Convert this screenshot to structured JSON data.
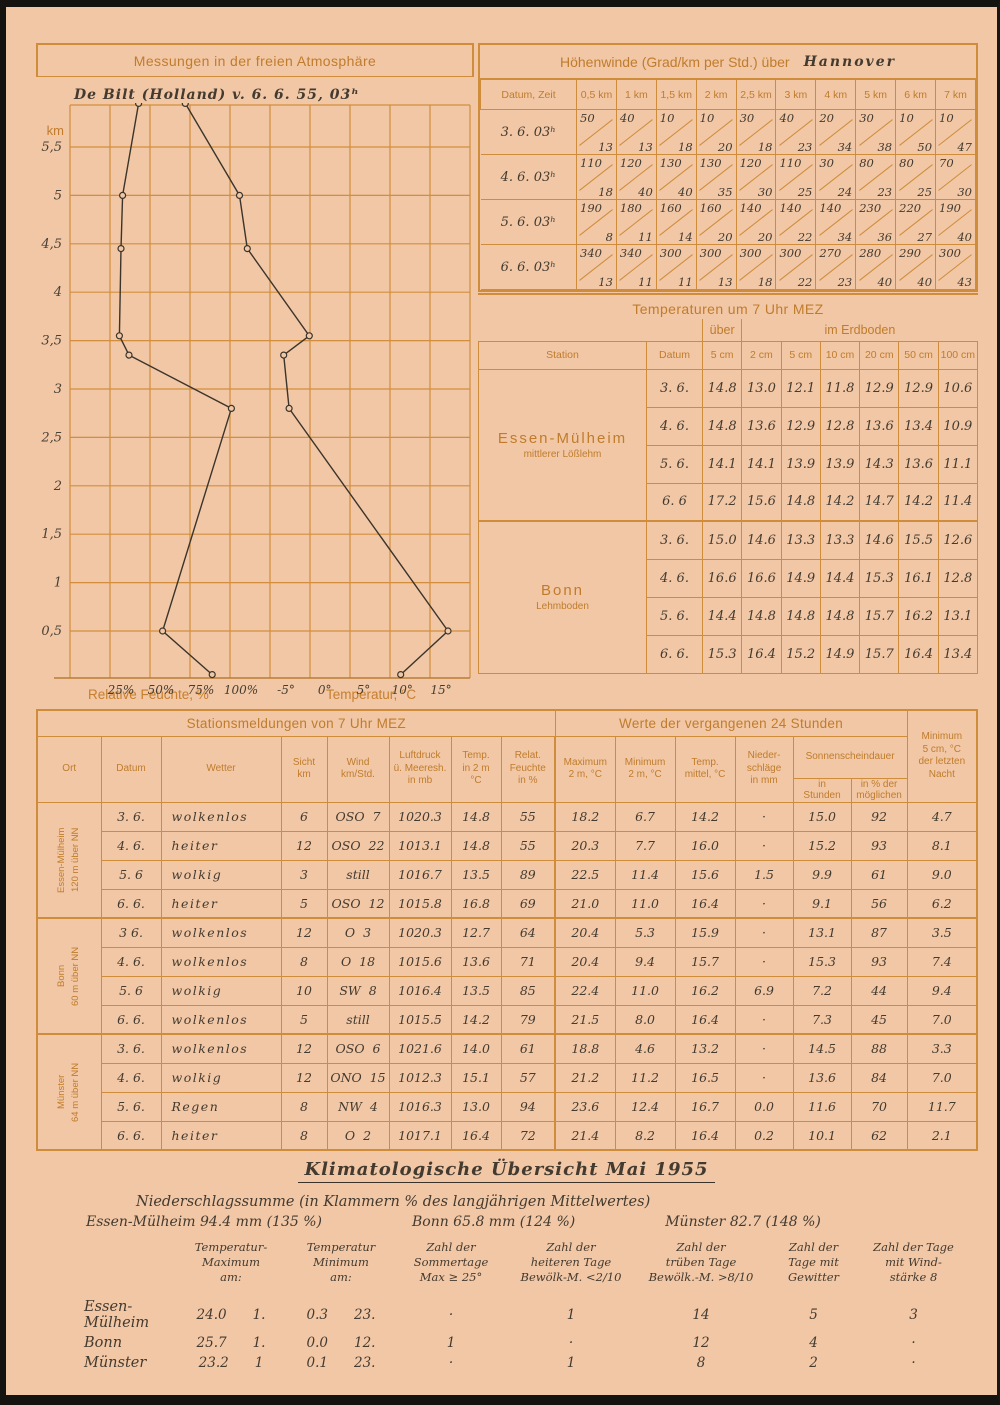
{
  "atmosphere_chart": {
    "title": "Messungen in der freien Atmosphäre",
    "subtitle": "De Bilt (Holland)  v.  6. 6. 55,  03ʰ",
    "unit_label": "km",
    "x_axis_captions": {
      "humidity": "Relative Feuchte, %",
      "temperature": "Temperatur, °C"
    },
    "chart_data": {
      "type": "line",
      "title": "Messungen in der freien Atmosphäre",
      "station": "De Bilt (Holland) v. 6.6.55, 03h",
      "ylabel": "km",
      "y_ticks": [
        5.5,
        5,
        4.5,
        4,
        3.5,
        3,
        2.5,
        2,
        1.5,
        1,
        0.5
      ],
      "x_axis": {
        "humidity_ticks_percent": [
          25,
          50,
          75,
          100
        ],
        "temperature_ticks_c": [
          -5,
          0,
          5,
          10,
          15
        ]
      },
      "series": [
        {
          "name": "Relative Feuchte, %",
          "points": [
            [
              5.95,
              36
            ],
            [
              5.0,
              26
            ],
            [
              4.45,
              25
            ],
            [
              3.55,
              24
            ],
            [
              3.35,
              30
            ],
            [
              2.8,
              94
            ],
            [
              0.5,
              51
            ],
            [
              0.05,
              82
            ]
          ]
        },
        {
          "name": "Temperatur, °C",
          "points": [
            [
              5.95,
              -18
            ],
            [
              5.0,
              -11
            ],
            [
              4.45,
              -10
            ],
            [
              3.55,
              -2
            ],
            [
              3.35,
              -5.3
            ],
            [
              2.8,
              -4.6
            ],
            [
              0.5,
              15.9
            ],
            [
              0.05,
              9.8
            ]
          ]
        }
      ],
      "legend_position": "none",
      "grid": true
    }
  },
  "hoehenwinde": {
    "title": "Höhenwinde (Grad/km per Std.) über",
    "location": "Hannover",
    "datum_zeit_header": "Datum, Zeit",
    "altitude_headers": [
      "0,5 km",
      "1 km",
      "1,5 km",
      "2 km",
      "2,5 km",
      "3 km",
      "4 km",
      "5 km",
      "6 km",
      "7 km"
    ],
    "rows": [
      {
        "datum": "3. 6.  03ʰ",
        "direction": [
          50,
          40,
          10,
          10,
          30,
          40,
          20,
          30,
          10,
          10
        ],
        "speed": [
          13,
          13,
          18,
          20,
          18,
          23,
          34,
          38,
          50,
          47
        ]
      },
      {
        "datum": "4. 6.  03ʰ",
        "direction": [
          110,
          120,
          130,
          130,
          120,
          110,
          30,
          80,
          80,
          70
        ],
        "speed": [
          18,
          40,
          40,
          35,
          30,
          25,
          24,
          23,
          25,
          30
        ]
      },
      {
        "datum": "5. 6.  03ʰ",
        "direction": [
          190,
          180,
          160,
          160,
          140,
          140,
          140,
          230,
          220,
          190
        ],
        "speed": [
          8,
          11,
          14,
          20,
          20,
          22,
          34,
          36,
          27,
          40
        ]
      },
      {
        "datum": "6. 6.  03ʰ",
        "direction": [
          340,
          340,
          300,
          300,
          300,
          300,
          270,
          280,
          290,
          300
        ],
        "speed": [
          13,
          11,
          11,
          13,
          18,
          22,
          23,
          40,
          40,
          43
        ]
      }
    ]
  },
  "temperaturen": {
    "title": "Temperaturen um 7 Uhr MEZ",
    "over_label": "über",
    "ground_label": "im Erdboden",
    "station_header": "Station",
    "datum_header": "Datum",
    "depth_headers": [
      "5 cm",
      "2 cm",
      "5 cm",
      "10 cm",
      "20 cm",
      "50 cm",
      "100 cm"
    ],
    "stations": [
      {
        "name": "Essen-Mülheim",
        "soil": "mittlerer Lößlehm",
        "rows": [
          {
            "datum": "3. 6.",
            "values": [
              "14.8",
              "13.0",
              "12.1",
              "11.8",
              "12.9",
              "12.9",
              "10.6"
            ]
          },
          {
            "datum": "4. 6.",
            "values": [
              "14.8",
              "13.6",
              "12.9",
              "12.8",
              "13.6",
              "13.4",
              "10.9"
            ]
          },
          {
            "datum": "5. 6.",
            "values": [
              "14.1",
              "14.1",
              "13.9",
              "13.9",
              "14.3",
              "13.6",
              "11.1"
            ]
          },
          {
            "datum": "6. 6",
            "values": [
              "17.2",
              "15.6",
              "14.8",
              "14.2",
              "14.7",
              "14.2",
              "11.4"
            ]
          }
        ]
      },
      {
        "name": "Bonn",
        "soil": "Lehmboden",
        "rows": [
          {
            "datum": "3. 6.",
            "values": [
              "15.0",
              "14.6",
              "13.3",
              "13.3",
              "14.6",
              "15.5",
              "12.6"
            ]
          },
          {
            "datum": "4. 6.",
            "values": [
              "16.6",
              "16.6",
              "14.9",
              "14.4",
              "15.3",
              "16.1",
              "12.8"
            ]
          },
          {
            "datum": "5. 6.",
            "values": [
              "14.4",
              "14.8",
              "14.8",
              "14.8",
              "15.7",
              "16.2",
              "13.1"
            ]
          },
          {
            "datum": "6. 6.",
            "values": [
              "15.3",
              "16.4",
              "15.2",
              "14.9",
              "15.7",
              "16.4",
              "13.4"
            ]
          }
        ]
      }
    ]
  },
  "observations": {
    "left_title": "Stationsmeldungen von 7 Uhr MEZ",
    "right_title": "Werte der vergangenen 24 Stunden",
    "left_headers": [
      "Ort",
      "Datum",
      "Wetter",
      "Sicht\nkm",
      "Wind\nkm/Std.",
      "Luftdruck\nü. Meeresh.\nin mb",
      "Temp.\nin 2 m\n°C",
      "Relat.\nFeuchte\nin %"
    ],
    "right_headers": [
      "Maximum\n2 m, °C",
      "Minimum\n2 m, °C",
      "Temp.\nmittel, °C",
      "Nieder-\nschläge\nin mm"
    ],
    "sun_header": "Sonnenscheindauer",
    "sun_sub": [
      "in\nStunden",
      "in % der\nmöglichen"
    ],
    "min5_header": "Minimum\n5 cm, °C\nder letzten\nNacht",
    "stations": [
      {
        "name": "Essen-Mülheim",
        "elevation": "120 m über NN",
        "rows": [
          {
            "datum": "3. 6.",
            "wetter": "wolkenlos",
            "sicht": "6",
            "wind": "OSO  7",
            "luftdruck": "1020.3",
            "temp": "14.8",
            "feuchte": "55",
            "max": "18.2",
            "min": "6.7",
            "tmittel": "14.2",
            "nieder": "·",
            "sonnen_h": "15.0",
            "sonnen_pct": "92",
            "min5": "4.7"
          },
          {
            "datum": "4. 6.",
            "wetter": "heiter",
            "sicht": "12",
            "wind": "OSO  22",
            "luftdruck": "1013.1",
            "temp": "14.8",
            "feuchte": "55",
            "max": "20.3",
            "min": "7.7",
            "tmittel": "16.0",
            "nieder": "·",
            "sonnen_h": "15.2",
            "sonnen_pct": "93",
            "min5": "8.1"
          },
          {
            "datum": "5. 6",
            "wetter": "wolkig",
            "sicht": "3",
            "wind": "still",
            "luftdruck": "1016.7",
            "temp": "13.5",
            "feuchte": "89",
            "max": "22.5",
            "min": "11.4",
            "tmittel": "15.6",
            "nieder": "1.5",
            "sonnen_h": "9.9",
            "sonnen_pct": "61",
            "min5": "9.0"
          },
          {
            "datum": "6. 6.",
            "wetter": "heiter",
            "sicht": "5",
            "wind": "OSO  12",
            "luftdruck": "1015.8",
            "temp": "16.8",
            "feuchte": "69",
            "max": "21.0",
            "min": "11.0",
            "tmittel": "16.4",
            "nieder": "·",
            "sonnen_h": "9.1",
            "sonnen_pct": "56",
            "min5": "6.2"
          }
        ]
      },
      {
        "name": "Bonn",
        "elevation": "60 m über NN",
        "rows": [
          {
            "datum": "3 6.",
            "wetter": "wolkenlos",
            "sicht": "12",
            "wind": "O  3",
            "luftdruck": "1020.3",
            "temp": "12.7",
            "feuchte": "64",
            "max": "20.4",
            "min": "5.3",
            "tmittel": "15.9",
            "nieder": "·",
            "sonnen_h": "13.1",
            "sonnen_pct": "87",
            "min5": "3.5"
          },
          {
            "datum": "4. 6.",
            "wetter": "wolkenlos",
            "sicht": "8",
            "wind": "O  18",
            "luftdruck": "1015.6",
            "temp": "13.6",
            "feuchte": "71",
            "max": "20.4",
            "min": "9.4",
            "tmittel": "15.7",
            "nieder": "·",
            "sonnen_h": "15.3",
            "sonnen_pct": "93",
            "min5": "7.4"
          },
          {
            "datum": "5. 6",
            "wetter": "wolkig",
            "sicht": "10",
            "wind": "SW  8",
            "luftdruck": "1016.4",
            "temp": "13.5",
            "feuchte": "85",
            "max": "22.4",
            "min": "11.0",
            "tmittel": "16.2",
            "nieder": "6.9",
            "sonnen_h": "7.2",
            "sonnen_pct": "44",
            "min5": "9.4"
          },
          {
            "datum": "6. 6.",
            "wetter": "wolkenlos",
            "sicht": "5",
            "wind": "still",
            "luftdruck": "1015.5",
            "temp": "14.2",
            "feuchte": "79",
            "max": "21.5",
            "min": "8.0",
            "tmittel": "16.4",
            "nieder": "·",
            "sonnen_h": "7.3",
            "sonnen_pct": "45",
            "min5": "7.0"
          }
        ]
      },
      {
        "name": "Münster",
        "elevation": "64 m über NN",
        "rows": [
          {
            "datum": "3. 6.",
            "wetter": "wolkenlos",
            "sicht": "12",
            "wind": "OSO  6",
            "luftdruck": "1021.6",
            "temp": "14.0",
            "feuchte": "61",
            "max": "18.8",
            "min": "4.6",
            "tmittel": "13.2",
            "nieder": "·",
            "sonnen_h": "14.5",
            "sonnen_pct": "88",
            "min5": "3.3"
          },
          {
            "datum": "4. 6.",
            "wetter": "wolkig",
            "sicht": "12",
            "wind": "ONO  15",
            "luftdruck": "1012.3",
            "temp": "15.1",
            "feuchte": "57",
            "max": "21.2",
            "min": "11.2",
            "tmittel": "16.5",
            "nieder": "·",
            "sonnen_h": "13.6",
            "sonnen_pct": "84",
            "min5": "7.0"
          },
          {
            "datum": "5. 6.",
            "wetter": "Regen",
            "sicht": "8",
            "wind": "NW  4",
            "luftdruck": "1016.3",
            "temp": "13.0",
            "feuchte": "94",
            "max": "23.6",
            "min": "12.4",
            "tmittel": "16.7",
            "nieder": "0.0",
            "sonnen_h": "11.6",
            "sonnen_pct": "70",
            "min5": "11.7"
          },
          {
            "datum": "6. 6.",
            "wetter": "heiter",
            "sicht": "8",
            "wind": "O  2",
            "luftdruck": "1017.1",
            "temp": "16.4",
            "feuchte": "72",
            "max": "21.4",
            "min": "8.2",
            "tmittel": "16.4",
            "nieder": "0.2",
            "sonnen_h": "10.1",
            "sonnen_pct": "62",
            "min5": "2.1"
          }
        ]
      }
    ]
  },
  "klima": {
    "title": "Klimatologische Übersicht   Mai 1955",
    "precip_note": "Niederschlagssumme (in Klammern % des langjährigen Mittelwertes)",
    "precip": [
      "Essen-Mülheim 94.4 mm (135 %)",
      "Bonn 65.8 mm (124 %)",
      "Münster 82.7 (148 %)"
    ],
    "headers": [
      "Temperatur-\nMaximum\nam:",
      "Temperatur\nMinimum\nam:",
      "Zahl der\nSommertage\nMax ≥ 25°",
      "Zahl der\nheiteren Tage\nBewölk-M. <2/10",
      "Zahl der\ntrüben Tage\nBewölk.-M. >8/10",
      "Zahl der\nTage mit\nGewitter",
      "Zahl der Tage\nmit Wind-\nstärke 8"
    ],
    "rows": [
      {
        "name": "Essen- Mülheim",
        "tmax": "24.0",
        "tmax_am": "1.",
        "tmin": "0.3",
        "tmin_am": "23.",
        "sommertage": "·",
        "heitere_tage": "1",
        "truebe_tage": "14",
        "gewitter": "5",
        "windstaerke8": "3"
      },
      {
        "name": "Bonn",
        "tmax": "25.7",
        "tmax_am": "1.",
        "tmin": "0.0",
        "tmin_am": "12.",
        "sommertage": "1",
        "heitere_tage": "·",
        "truebe_tage": "12",
        "gewitter": "4",
        "windstaerke8": "·"
      },
      {
        "name": "Münster",
        "tmax": "23.2",
        "tmax_am": "1",
        "tmin": "0.1",
        "tmin_am": "23.",
        "sommertage": "·",
        "heitere_tage": "1",
        "truebe_tage": "8",
        "gewitter": "2",
        "windstaerke8": "·"
      }
    ]
  }
}
